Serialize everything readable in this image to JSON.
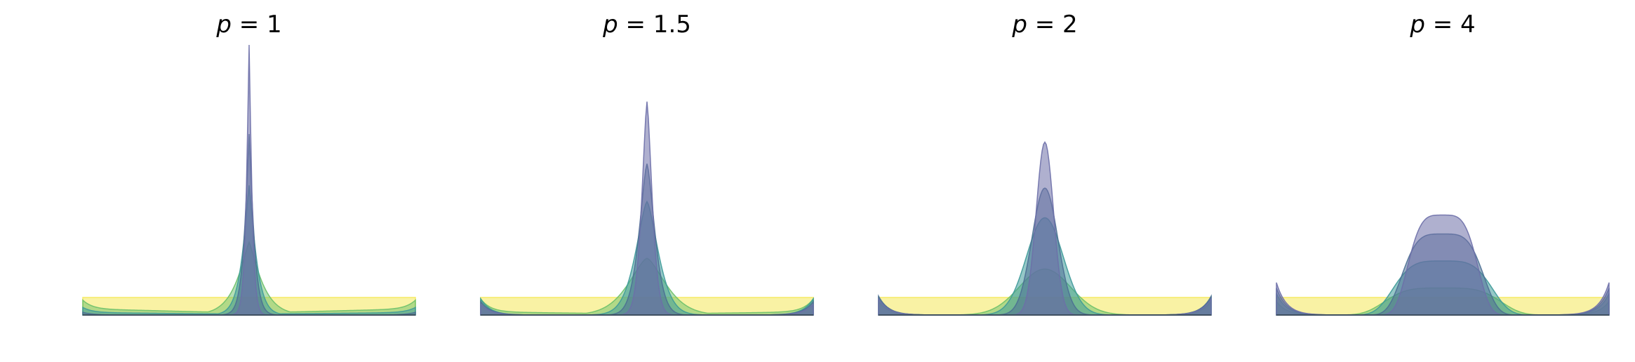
{
  "chart_data": [
    {
      "type": "area",
      "title_var": "p",
      "title_eq": " = 1",
      "p": 1,
      "peak_heights": [
        1.0,
        0.67,
        0.48,
        0.27,
        0.07
      ],
      "widths": [
        0.012,
        0.02,
        0.03,
        0.055,
        0.6
      ],
      "baseline_levels": [
        0.0,
        0.0,
        0.008,
        0.02,
        0.065
      ],
      "edge_bumps": [
        0.0,
        0.01,
        0.02,
        0.035,
        0.0
      ]
    },
    {
      "type": "area",
      "title_var": "p",
      "title_eq": " = 1.5",
      "p": 1.5,
      "peak_heights": [
        0.79,
        0.56,
        0.42,
        0.21,
        0.07
      ],
      "widths": [
        0.025,
        0.038,
        0.055,
        0.09,
        0.6
      ],
      "baseline_levels": [
        0.0,
        0.0,
        0.0,
        0.01,
        0.065
      ],
      "edge_bumps": [
        0.04,
        0.05,
        0.06,
        0.05,
        0.0
      ]
    },
    {
      "type": "area",
      "title_var": "p",
      "title_eq": " = 2",
      "p": 2,
      "peak_heights": [
        0.64,
        0.47,
        0.36,
        0.17,
        0.07
      ],
      "widths": [
        0.04,
        0.06,
        0.085,
        0.12,
        0.6
      ],
      "baseline_levels": [
        0.0,
        0.0,
        0.0,
        0.0,
        0.065
      ],
      "edge_bumps": [
        0.06,
        0.07,
        0.065,
        0.05,
        0.0
      ]
    },
    {
      "type": "area",
      "title_var": "p",
      "title_eq": " = 4",
      "p": 4,
      "peak_heights": [
        0.37,
        0.3,
        0.2,
        0.1,
        0.065
      ],
      "widths": [
        0.12,
        0.14,
        0.17,
        0.2,
        0.6
      ],
      "baseline_levels": [
        0.0,
        0.0,
        0.0,
        0.0,
        0.065
      ],
      "edge_bumps": [
        0.12,
        0.1,
        0.08,
        0.05,
        0.0
      ]
    }
  ],
  "colors": {
    "fills": [
      "#6d6fa8",
      "#4d6f93",
      "#3e9a99",
      "#6cc06a",
      "#f4e85a"
    ],
    "fill_opacity": [
      0.55,
      0.55,
      0.55,
      0.5,
      0.55
    ],
    "axis_line": "#3f5060"
  }
}
